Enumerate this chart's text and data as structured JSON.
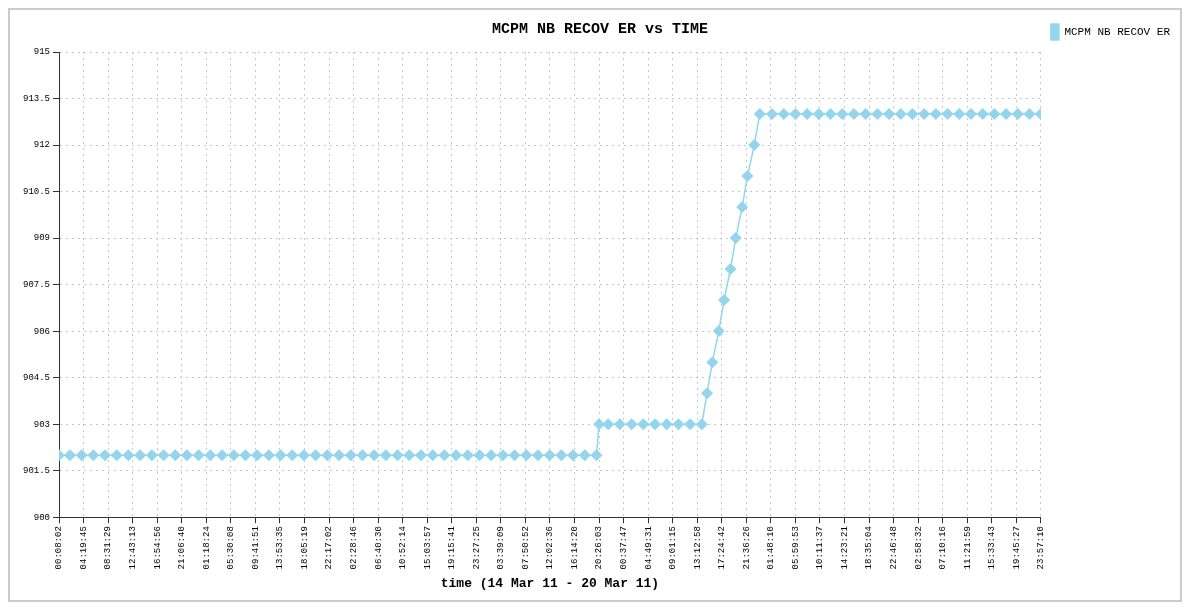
{
  "chart_data": {
    "type": "line",
    "title": "MCPM NB RECOV ER vs TIME",
    "xlabel": "time (14 Mar 11 - 20 Mar 11)",
    "x": [
      "--03-14T00:08:02",
      "--03-14T02:00",
      "--03-14T04:00",
      "--03-14T06:00",
      "--03-14T08:00",
      "--03-14T10:00",
      "--03-14T12:00",
      "--03-14T14:00",
      "--03-14T16:00",
      "--03-14T18:00",
      "--03-14T20:00",
      "--03-14T22:00",
      "--03-15T00:00",
      "--03-15T02:00",
      "--03-15T04:00",
      "--03-15T06:00",
      "--03-15T08:00",
      "--03-15T10:00",
      "--03-15T12:00",
      "--03-15T14:00",
      "--03-15T16:00",
      "--03-15T18:00",
      "--03-15T20:00",
      "--03-15T22:00",
      "--03-16T00:00",
      "--03-16T02:00",
      "--03-16T04:00",
      "--03-16T06:00",
      "--03-16T08:00",
      "--03-16T10:00",
      "--03-16T12:00",
      "--03-16T14:00",
      "--03-16T16:00",
      "--03-16T18:00",
      "--03-16T20:00",
      "--03-16T22:00",
      "--03-17T00:00",
      "--03-17T02:00",
      "--03-17T04:00",
      "--03-17T06:00",
      "--03-17T08:00",
      "--03-17T10:00",
      "--03-17T12:00",
      "--03-17T14:00",
      "--03-17T16:00",
      "--03-17T18:00",
      "--03-17T20:00",
      "--03-17T20:26:03",
      "--03-17T22:00",
      "--03-18T00:00",
      "--03-18T02:00",
      "--03-18T04:00",
      "--03-18T06:00",
      "--03-18T08:00",
      "--03-18T10:00",
      "--03-18T12:00",
      "--03-18T14:00",
      "--03-18T14:54",
      "--03-18T15:48",
      "--03-18T16:54",
      "--03-18T17:48",
      "--03-18T18:54",
      "--03-18T19:48",
      "--03-18T20:54",
      "--03-18T21:48",
      "--03-18T22:58",
      "--03-18T23:54",
      "--03-19T02:00",
      "--03-19T04:00",
      "--03-19T06:00",
      "--03-19T08:00",
      "--03-19T10:00",
      "--03-19T12:00",
      "--03-19T14:00",
      "--03-19T16:00",
      "--03-19T18:00",
      "--03-19T20:00",
      "--03-19T22:00",
      "--03-20T00:00",
      "--03-20T02:00",
      "--03-20T04:00",
      "--03-20T06:00",
      "--03-20T08:00",
      "--03-20T10:00",
      "--03-20T12:00",
      "--03-20T14:00",
      "--03-20T16:00",
      "--03-20T18:00",
      "--03-20T20:00",
      "--03-20T22:00",
      "--03-20T23:57:10"
    ],
    "series": [
      {
        "name": "MCPM NB RECOV ER",
        "color": "#94d5ee",
        "values": [
          902,
          902,
          902,
          902,
          902,
          902,
          902,
          902,
          902,
          902,
          902,
          902,
          902,
          902,
          902,
          902,
          902,
          902,
          902,
          902,
          902,
          902,
          902,
          902,
          902,
          902,
          902,
          902,
          902,
          902,
          902,
          902,
          902,
          902,
          902,
          902,
          902,
          902,
          902,
          902,
          902,
          902,
          902,
          902,
          902,
          902,
          902,
          903,
          903,
          903,
          903,
          903,
          903,
          903,
          903,
          903,
          903,
          904,
          905,
          906,
          907,
          908,
          909,
          910,
          911,
          912,
          913,
          913,
          913,
          913,
          913,
          913,
          913,
          913,
          913,
          913,
          913,
          913,
          913,
          913,
          913,
          913,
          913,
          913,
          913,
          913,
          913,
          913,
          913,
          913,
          913
        ]
      }
    ],
    "xlim": [
      "--03-14T00:08:02",
      "--03-20T23:57:10"
    ],
    "xticks": [
      {
        "value": "--03-14T00:08:02",
        "label": "00:08:02"
      },
      {
        "value": "--03-14T04:19:45",
        "label": "04:19:45"
      },
      {
        "value": "--03-14T08:31:29",
        "label": "08:31:29"
      },
      {
        "value": "--03-14T12:43:13",
        "label": "12:43:13"
      },
      {
        "value": "--03-14T16:54:56",
        "label": "16:54:56"
      },
      {
        "value": "--03-14T21:06:40",
        "label": "21:06:40"
      },
      {
        "value": "--03-15T01:18:24",
        "label": "01:18:24"
      },
      {
        "value": "--03-15T05:30:08",
        "label": "05:30:08"
      },
      {
        "value": "--03-15T09:41:51",
        "label": "09:41:51"
      },
      {
        "value": "--03-15T13:53:35",
        "label": "13:53:35"
      },
      {
        "value": "--03-15T18:05:19",
        "label": "18:05:19"
      },
      {
        "value": "--03-15T22:17:02",
        "label": "22:17:02"
      },
      {
        "value": "--03-16T02:28:46",
        "label": "02:28:46"
      },
      {
        "value": "--03-16T06:40:30",
        "label": "06:40:30"
      },
      {
        "value": "--03-16T10:52:14",
        "label": "10:52:14"
      },
      {
        "value": "--03-16T15:03:57",
        "label": "15:03:57"
      },
      {
        "value": "--03-16T19:15:41",
        "label": "19:15:41"
      },
      {
        "value": "--03-16T23:27:25",
        "label": "23:27:25"
      },
      {
        "value": "--03-17T03:39:09",
        "label": "03:39:09"
      },
      {
        "value": "--03-17T07:50:52",
        "label": "07:50:52"
      },
      {
        "value": "--03-17T12:02:36",
        "label": "12:02:36"
      },
      {
        "value": "--03-17T16:14:20",
        "label": "16:14:20"
      },
      {
        "value": "--03-17T20:26:03",
        "label": "20:26:03"
      },
      {
        "value": "--03-18T00:37:47",
        "label": "00:37:47"
      },
      {
        "value": "--03-18T04:49:31",
        "label": "04:49:31"
      },
      {
        "value": "--03-18T09:01:15",
        "label": "09:01:15"
      },
      {
        "value": "--03-18T13:12:58",
        "label": "13:12:58"
      },
      {
        "value": "--03-18T17:24:42",
        "label": "17:24:42"
      },
      {
        "value": "--03-18T21:36:26",
        "label": "21:36:26"
      },
      {
        "value": "--03-19T01:48:10",
        "label": "01:48:10"
      },
      {
        "value": "--03-19T05:59:53",
        "label": "05:59:53"
      },
      {
        "value": "--03-19T10:11:37",
        "label": "10:11:37"
      },
      {
        "value": "--03-19T14:23:21",
        "label": "14:23:21"
      },
      {
        "value": "--03-19T18:35:04",
        "label": "18:35:04"
      },
      {
        "value": "--03-19T22:46:48",
        "label": "22:46:48"
      },
      {
        "value": "--03-20T02:58:32",
        "label": "02:58:32"
      },
      {
        "value": "--03-20T07:10:16",
        "label": "07:10:16"
      },
      {
        "value": "--03-20T11:21:59",
        "label": "11:21:59"
      },
      {
        "value": "--03-20T15:33:43",
        "label": "15:33:43"
      },
      {
        "value": "--03-20T19:45:27",
        "label": "19:45:27"
      },
      {
        "value": "--03-20T23:57:10",
        "label": "23:57:10"
      }
    ],
    "ylim": [
      900,
      915
    ],
    "yticks": [
      900,
      901.5,
      903,
      904.5,
      906,
      907.5,
      909,
      910.5,
      912,
      913.5,
      915
    ],
    "grid": true,
    "legend": "top right",
    "marker": "diamond",
    "line_style": "solid"
  }
}
